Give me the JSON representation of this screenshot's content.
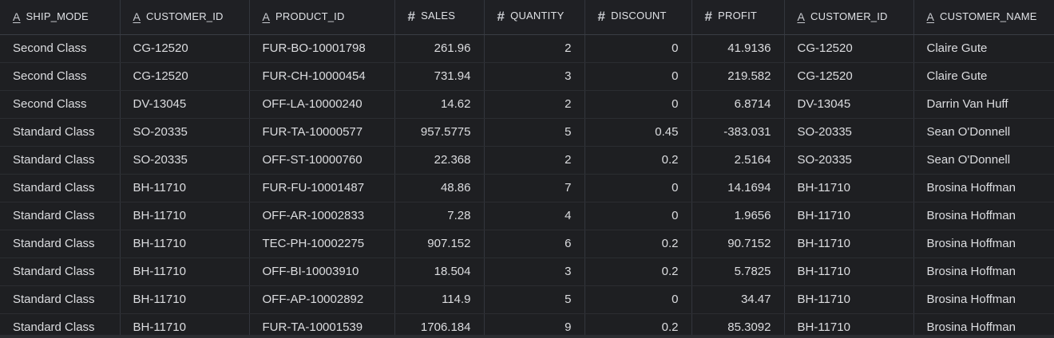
{
  "grid": {
    "columns": [
      {
        "label": "SHIP_MODE",
        "type": "text",
        "icon": "text-type-icon",
        "align": "left"
      },
      {
        "label": "CUSTOMER_ID",
        "type": "text",
        "icon": "text-type-icon",
        "align": "left"
      },
      {
        "label": "PRODUCT_ID",
        "type": "text",
        "icon": "text-type-icon",
        "align": "left"
      },
      {
        "label": "SALES",
        "type": "number",
        "icon": "number-type-icon",
        "align": "right"
      },
      {
        "label": "QUANTITY",
        "type": "number",
        "icon": "number-type-icon",
        "align": "right"
      },
      {
        "label": "DISCOUNT",
        "type": "number",
        "icon": "number-type-icon",
        "align": "right"
      },
      {
        "label": "PROFIT",
        "type": "number",
        "icon": "number-type-icon",
        "align": "right"
      },
      {
        "label": "CUSTOMER_ID",
        "type": "text",
        "icon": "text-type-icon",
        "align": "left"
      },
      {
        "label": "CUSTOMER_NAME",
        "type": "text",
        "icon": "text-type-icon",
        "align": "left"
      }
    ],
    "rows": [
      [
        "Second Class",
        "CG-12520",
        "FUR-BO-10001798",
        "261.96",
        "2",
        "0",
        "41.9136",
        "CG-12520",
        "Claire Gute"
      ],
      [
        "Second Class",
        "CG-12520",
        "FUR-CH-10000454",
        "731.94",
        "3",
        "0",
        "219.582",
        "CG-12520",
        "Claire Gute"
      ],
      [
        "Second Class",
        "DV-13045",
        "OFF-LA-10000240",
        "14.62",
        "2",
        "0",
        "6.8714",
        "DV-13045",
        "Darrin Van Huff"
      ],
      [
        "Standard Class",
        "SO-20335",
        "FUR-TA-10000577",
        "957.5775",
        "5",
        "0.45",
        "-383.031",
        "SO-20335",
        "Sean O'Donnell"
      ],
      [
        "Standard Class",
        "SO-20335",
        "OFF-ST-10000760",
        "22.368",
        "2",
        "0.2",
        "2.5164",
        "SO-20335",
        "Sean O'Donnell"
      ],
      [
        "Standard Class",
        "BH-11710",
        "FUR-FU-10001487",
        "48.86",
        "7",
        "0",
        "14.1694",
        "BH-11710",
        "Brosina Hoffman"
      ],
      [
        "Standard Class",
        "BH-11710",
        "OFF-AR-10002833",
        "7.28",
        "4",
        "0",
        "1.9656",
        "BH-11710",
        "Brosina Hoffman"
      ],
      [
        "Standard Class",
        "BH-11710",
        "TEC-PH-10002275",
        "907.152",
        "6",
        "0.2",
        "90.7152",
        "BH-11710",
        "Brosina Hoffman"
      ],
      [
        "Standard Class",
        "BH-11710",
        "OFF-BI-10003910",
        "18.504",
        "3",
        "0.2",
        "5.7825",
        "BH-11710",
        "Brosina Hoffman"
      ],
      [
        "Standard Class",
        "BH-11710",
        "OFF-AP-10002892",
        "114.9",
        "5",
        "0",
        "34.47",
        "BH-11710",
        "Brosina Hoffman"
      ],
      [
        "Standard Class",
        "BH-11710",
        "FUR-TA-10001539",
        "1706.184",
        "9",
        "0.2",
        "85.3092",
        "BH-11710",
        "Brosina Hoffman"
      ]
    ]
  },
  "colors": {
    "background": "#1e1f22",
    "header_background": "#1f2024",
    "grid_line": "#33363d",
    "text": "#dcdde0"
  }
}
